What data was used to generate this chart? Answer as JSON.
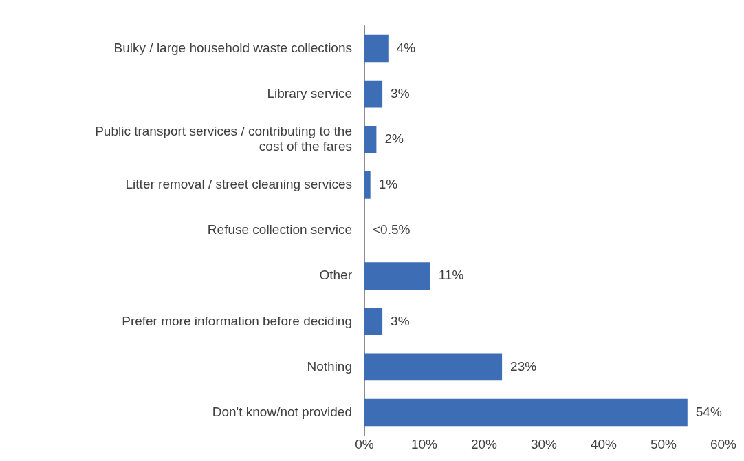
{
  "chart_data": {
    "type": "bar",
    "orientation": "horizontal",
    "categories": [
      "Bulky / large household waste collections",
      "Library service",
      "Public transport services / contributing to the cost of the fares",
      "Litter removal / street cleaning services",
      "Refuse collection service",
      "Other",
      "Prefer more information before deciding",
      "Nothing",
      "Don't know/not provided"
    ],
    "values": [
      4,
      3,
      2,
      1,
      0,
      11,
      3,
      23,
      54
    ],
    "value_labels": [
      "4%",
      "3%",
      "2%",
      "1%",
      "<0.5%",
      "11%",
      "3%",
      "23%",
      "54%"
    ],
    "color": "#3d6db5",
    "xlim": [
      0,
      60
    ],
    "xticks": [
      {
        "value": 0,
        "label": "0%"
      },
      {
        "value": 10,
        "label": "10%"
      },
      {
        "value": 20,
        "label": "20%"
      },
      {
        "value": 30,
        "label": "30%"
      },
      {
        "value": 40,
        "label": "40%"
      },
      {
        "value": 50,
        "label": "50%"
      },
      {
        "value": 60,
        "label": "60%"
      }
    ],
    "grid": false,
    "legend": false
  }
}
